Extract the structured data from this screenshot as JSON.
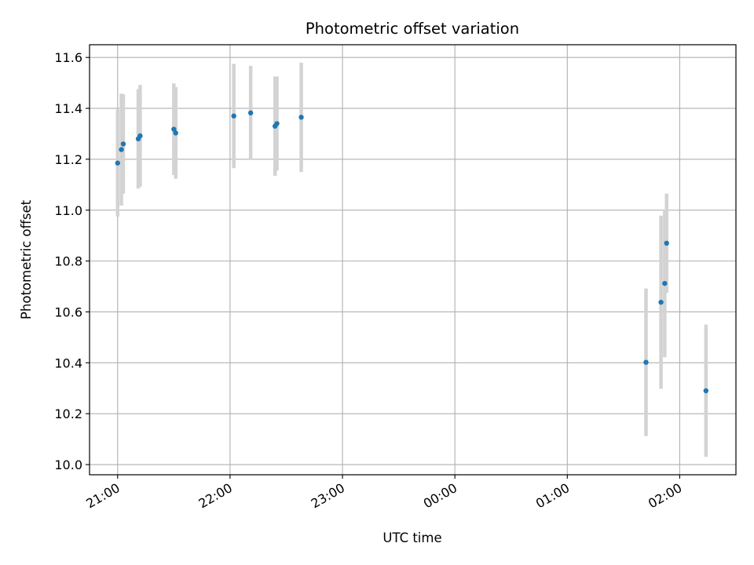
{
  "chart_data": {
    "type": "scatter",
    "title": "Photometric offset variation",
    "xlabel": "UTC time",
    "ylabel": "Photometric offset",
    "xlim": [
      "20:45",
      "02:30"
    ],
    "ylim": [
      9.96,
      11.65
    ],
    "grid": true,
    "point_color": "#1f77b4",
    "errorbar_color": "#d3d3d3",
    "x_ticks": [
      {
        "t": "21:00",
        "label": "21:00"
      },
      {
        "t": "22:00",
        "label": "22:00"
      },
      {
        "t": "23:00",
        "label": "23:00"
      },
      {
        "t": "00:00",
        "label": "00:00"
      },
      {
        "t": "01:00",
        "label": "01:00"
      },
      {
        "t": "02:00",
        "label": "02:00"
      }
    ],
    "y_ticks": [
      {
        "v": 10.0,
        "label": "10.0"
      },
      {
        "v": 10.2,
        "label": "10.2"
      },
      {
        "v": 10.4,
        "label": "10.4"
      },
      {
        "v": 10.6,
        "label": "10.6"
      },
      {
        "v": 10.8,
        "label": "10.8"
      },
      {
        "v": 11.0,
        "label": "11.0"
      },
      {
        "v": 11.2,
        "label": "11.2"
      },
      {
        "v": 11.4,
        "label": "11.4"
      },
      {
        "v": 11.6,
        "label": "11.6"
      }
    ],
    "points": [
      {
        "t": "21:00",
        "y": 11.185,
        "err": 0.21
      },
      {
        "t": "21:02",
        "y": 11.238,
        "err": 0.22
      },
      {
        "t": "21:03",
        "y": 11.26,
        "err": 0.195
      },
      {
        "t": "21:11",
        "y": 11.28,
        "err": 0.195
      },
      {
        "t": "21:12",
        "y": 11.292,
        "err": 0.2
      },
      {
        "t": "21:30",
        "y": 11.318,
        "err": 0.18
      },
      {
        "t": "21:31",
        "y": 11.303,
        "err": 0.18
      },
      {
        "t": "22:02",
        "y": 11.37,
        "err": 0.205
      },
      {
        "t": "22:11",
        "y": 11.382,
        "err": 0.185
      },
      {
        "t": "22:24",
        "y": 11.33,
        "err": 0.195
      },
      {
        "t": "22:25",
        "y": 11.34,
        "err": 0.185
      },
      {
        "t": "22:38",
        "y": 11.365,
        "err": 0.215
      },
      {
        "t": "01:42",
        "y": 10.402,
        "err": 0.29
      },
      {
        "t": "01:50",
        "y": 10.638,
        "err": 0.34
      },
      {
        "t": "01:52",
        "y": 10.712,
        "err": 0.29
      },
      {
        "t": "01:53",
        "y": 10.87,
        "err": 0.195
      },
      {
        "t": "02:14",
        "y": 10.29,
        "err": 0.26
      }
    ]
  }
}
